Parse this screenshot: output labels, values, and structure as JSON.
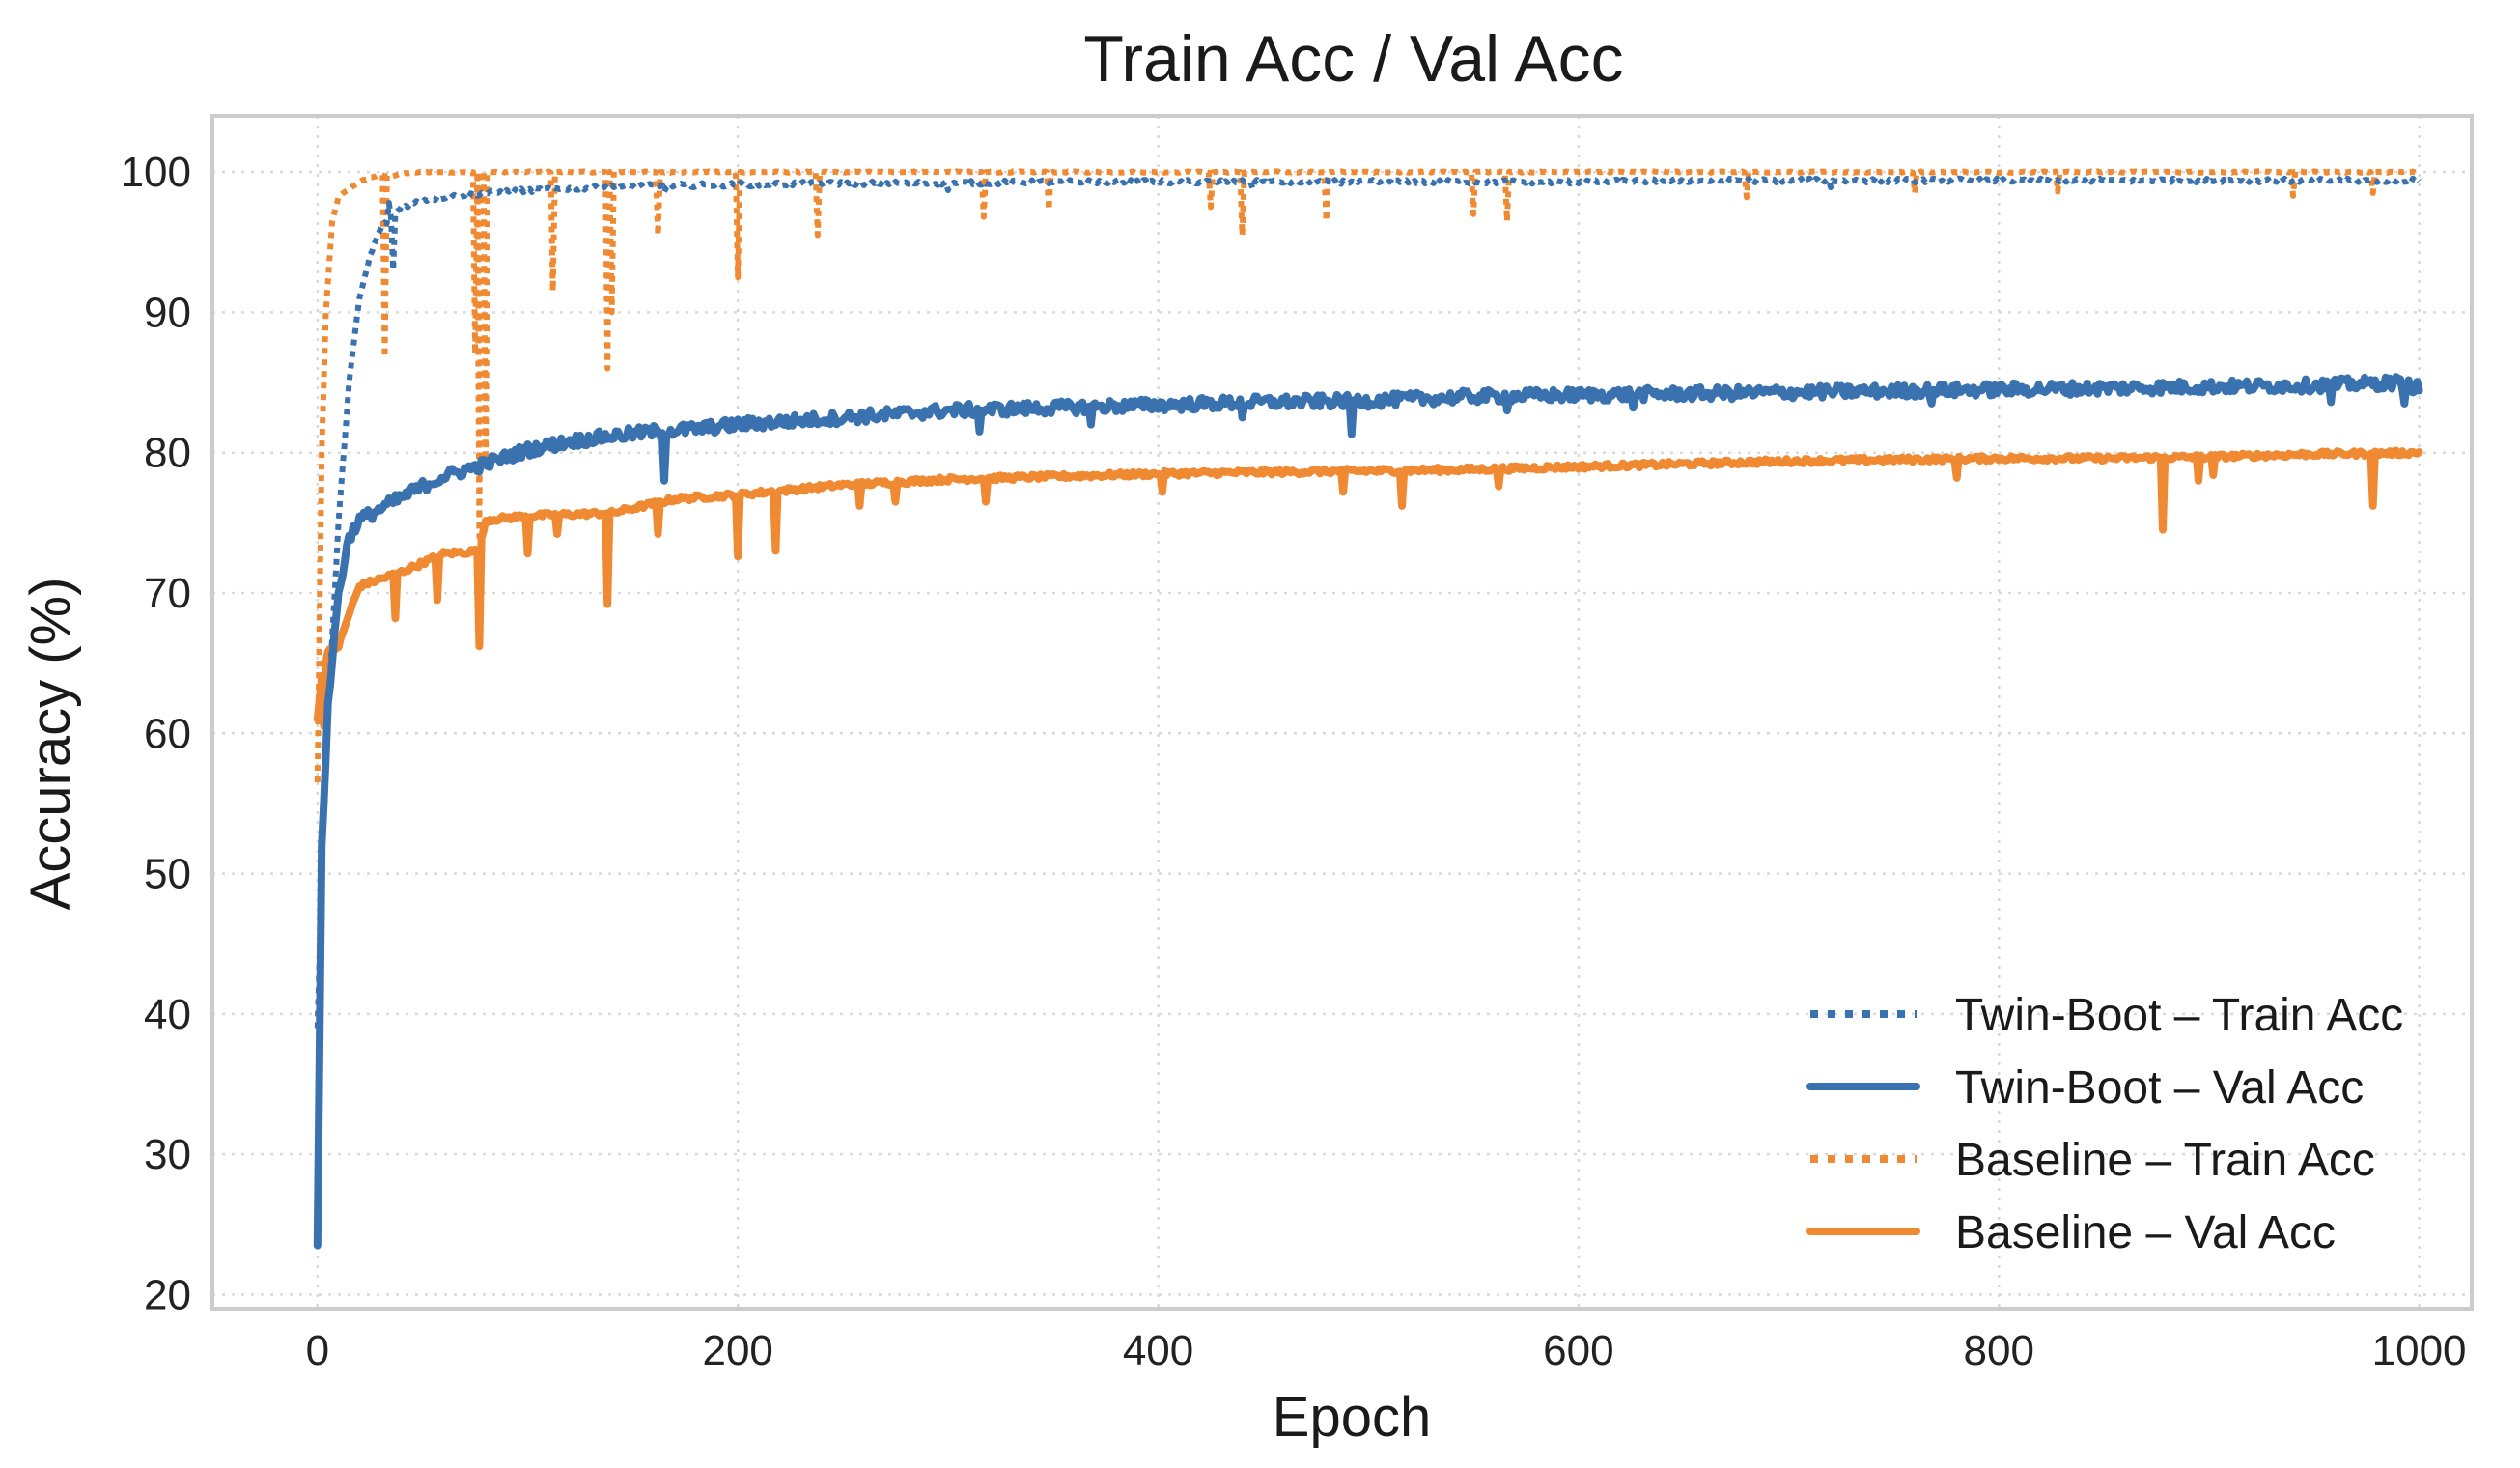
{
  "chart_data": {
    "type": "line",
    "title": "Train Acc / Val Acc",
    "xlabel": "Epoch",
    "ylabel": "Accuracy (%)",
    "xlim": [
      -50,
      1025
    ],
    "ylim": [
      19,
      104
    ],
    "xticks": [
      0,
      200,
      400,
      600,
      800,
      1000
    ],
    "xtick_labels": [
      "0",
      "200",
      "400",
      "600",
      "800",
      "1000"
    ],
    "yticks": [
      20,
      30,
      40,
      50,
      60,
      70,
      80,
      90,
      100
    ],
    "ytick_labels": [
      "20",
      "30",
      "40",
      "50",
      "60",
      "70",
      "80",
      "90",
      "100"
    ],
    "grid": true,
    "legend_position": "lower-right",
    "colors": {
      "blue": "#3a72b0",
      "orange": "#ef8a33"
    },
    "series": [
      {
        "name": "Twin-Boot – Train Acc",
        "style": "dotted",
        "color": "#3a72b0",
        "x": [
          0,
          3,
          6,
          10,
          15,
          20,
          25,
          30,
          40,
          50,
          60,
          80,
          100,
          150,
          200,
          250,
          300,
          350,
          400,
          450,
          500,
          550,
          600,
          650,
          700,
          750,
          800,
          850,
          900,
          950,
          1000
        ],
        "y": [
          39,
          55,
          64,
          75,
          85,
          91,
          94,
          96,
          97.5,
          98,
          98.2,
          98.5,
          98.7,
          99,
          99.1,
          99.2,
          99.2,
          99.3,
          99.3,
          99.3,
          99.3,
          99.3,
          99.3,
          99.4,
          99.4,
          99.4,
          99.4,
          99.4,
          99.4,
          99.4,
          99.4
        ]
      },
      {
        "name": "Twin-Boot – Val Acc",
        "style": "solid",
        "color": "#3a72b0",
        "x": [
          0,
          2,
          5,
          10,
          15,
          20,
          30,
          40,
          50,
          60,
          80,
          100,
          120,
          140,
          160,
          180,
          200,
          250,
          300,
          350,
          400,
          450,
          500,
          550,
          600,
          650,
          700,
          750,
          800,
          850,
          900,
          950,
          990,
          1000
        ],
        "y": [
          23.5,
          52,
          62,
          70,
          74,
          75.2,
          76,
          76.8,
          77.6,
          78.3,
          79.2,
          80.2,
          80.8,
          81.2,
          81.5,
          81.7,
          82,
          82.5,
          83,
          83.2,
          83.4,
          83.6,
          83.7,
          84,
          84.1,
          84.2,
          84.3,
          84.4,
          84.5,
          84.6,
          84.7,
          84.8,
          85,
          84.6
        ]
      },
      {
        "name": "Baseline – Train Acc",
        "style": "dotted",
        "color": "#ef8a33",
        "x": [
          0,
          2,
          4,
          7,
          10,
          15,
          20,
          25,
          30,
          35,
          40,
          50,
          60,
          80,
          100,
          140,
          200,
          300,
          400,
          500,
          600,
          700,
          800,
          900,
          1000
        ],
        "y": [
          56.5,
          80,
          90,
          96.5,
          98.2,
          98.8,
          99.3,
          99.6,
          99.8,
          99.7,
          99.9,
          100,
          100,
          100,
          100,
          100,
          100,
          100,
          100,
          100,
          100,
          100,
          100,
          100,
          100
        ]
      },
      {
        "name": "Baseline – Val Acc",
        "style": "solid",
        "color": "#ef8a33",
        "x": [
          0,
          2,
          5,
          10,
          15,
          20,
          30,
          40,
          60,
          77,
          80,
          100,
          140,
          170,
          200,
          250,
          300,
          350,
          400,
          450,
          500,
          550,
          600,
          650,
          700,
          750,
          800,
          850,
          900,
          950,
          1000
        ],
        "y": [
          61,
          64,
          65.8,
          66.2,
          68.5,
          70.5,
          71,
          71.5,
          72.8,
          73,
          75.2,
          75.5,
          75.7,
          76.7,
          77,
          77.7,
          78.1,
          78.3,
          78.5,
          78.6,
          78.7,
          78.8,
          79,
          79.2,
          79.4,
          79.5,
          79.6,
          79.6,
          79.7,
          79.9,
          80
        ]
      }
    ],
    "dips": [
      {
        "series": 0,
        "points": [
          [
            34,
            97.8
          ],
          [
            36,
            93
          ],
          [
            165,
            98.6
          ],
          [
            300,
            98.7
          ],
          [
            445,
            98.8
          ],
          [
            720,
            98.9
          ]
        ]
      },
      {
        "series": 1,
        "points": [
          [
            165,
            78
          ],
          [
            315,
            81.5
          ],
          [
            368,
            82
          ],
          [
            440,
            82.5
          ],
          [
            492,
            81.3
          ],
          [
            566,
            83
          ],
          [
            626,
            83.2
          ],
          [
            768,
            83.5
          ],
          [
            958,
            83.6
          ],
          [
            993,
            83.5
          ]
        ]
      },
      {
        "series": 2,
        "points": [
          [
            32,
            86.8
          ],
          [
            75,
            87
          ],
          [
            77,
            74
          ],
          [
            80,
            79
          ],
          [
            112,
            91.5
          ],
          [
            138,
            86
          ],
          [
            140,
            90
          ],
          [
            162,
            95.5
          ],
          [
            200,
            92.5
          ],
          [
            238,
            95.5
          ],
          [
            317,
            96.8
          ],
          [
            348,
            97.3
          ],
          [
            425,
            97.5
          ],
          [
            440,
            95.5
          ],
          [
            480,
            96.5
          ],
          [
            550,
            97
          ],
          [
            566,
            96.5
          ],
          [
            680,
            98.2
          ],
          [
            760,
            98.5
          ],
          [
            828,
            98.6
          ],
          [
            940,
            98.3
          ],
          [
            978,
            98.5
          ]
        ]
      },
      {
        "series": 3,
        "points": [
          [
            3,
            60.5
          ],
          [
            37,
            68.2
          ],
          [
            57,
            69.5
          ],
          [
            77,
            66.2
          ],
          [
            100,
            72.8
          ],
          [
            114,
            74.2
          ],
          [
            138,
            69.2
          ],
          [
            162,
            74.2
          ],
          [
            200,
            72.6
          ],
          [
            218,
            73
          ],
          [
            258,
            76.2
          ],
          [
            275,
            76.5
          ],
          [
            318,
            76.5
          ],
          [
            402,
            77.2
          ],
          [
            488,
            77.2
          ],
          [
            516,
            76.2
          ],
          [
            562,
            77.6
          ],
          [
            780,
            78.2
          ],
          [
            878,
            74.5
          ],
          [
            895,
            78
          ],
          [
            902,
            78.4
          ],
          [
            978,
            76.2
          ]
        ]
      }
    ]
  }
}
